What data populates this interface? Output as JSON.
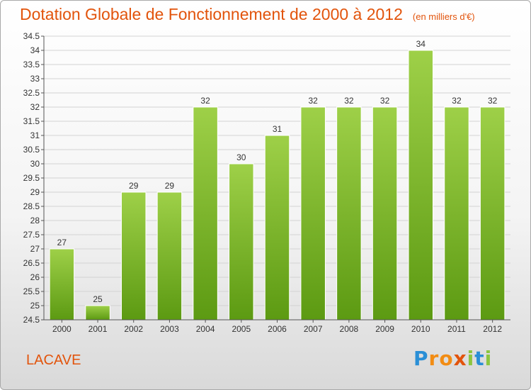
{
  "header": {
    "title": "Dotation Globale de Fonctionnement de 2000 à 2012",
    "unit": "(en milliers d'€)"
  },
  "footer": {
    "commune": "LACAVE",
    "logo": "Proxiti"
  },
  "colors": {
    "title": "#e2540c",
    "bar_light": "#9ed048",
    "bar_dark": "#5c9a12",
    "grid": "#d3d3d3"
  },
  "chart_data": {
    "type": "bar",
    "title": "Dotation Globale de Fonctionnement de 2000 à 2012",
    "subtitle": "(en milliers d'€)",
    "xlabel": "",
    "ylabel": "",
    "categories": [
      "2000",
      "2001",
      "2002",
      "2003",
      "2004",
      "2005",
      "2006",
      "2007",
      "2008",
      "2009",
      "2010",
      "2011",
      "2012"
    ],
    "values": [
      27,
      25,
      29,
      29,
      32,
      30,
      31,
      32,
      32,
      32,
      34,
      32,
      32
    ],
    "ylim": [
      24.5,
      34.5
    ],
    "yticks": [
      "24.5",
      "25",
      "25.5",
      "26",
      "26.5",
      "27",
      "27.5",
      "28",
      "28.5",
      "29",
      "29.5",
      "30",
      "30.5",
      "31",
      "31.5",
      "32",
      "32.5",
      "33",
      "33.5",
      "34",
      "34.5"
    ],
    "grid": true,
    "legend": "none"
  }
}
